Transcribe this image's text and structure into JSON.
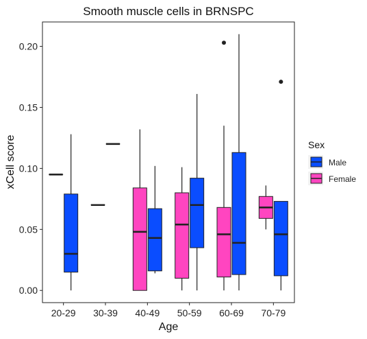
{
  "chart_data": {
    "type": "boxplot",
    "title": "Smooth muscle cells in BRNSPC",
    "xlabel": "Age",
    "ylabel": "xCell score",
    "ylim": [
      -0.01,
      0.22
    ],
    "yticks": [
      0.0,
      0.05,
      0.1,
      0.15,
      0.2
    ],
    "ytick_labels": [
      "0.00",
      "0.05",
      "0.10",
      "0.15",
      "0.20"
    ],
    "categories": [
      "20-29",
      "30-39",
      "40-49",
      "50-59",
      "60-69",
      "70-79"
    ],
    "legend": {
      "title": "Sex",
      "position": "right",
      "entries": [
        {
          "name": "Male",
          "color": "#0a4dff"
        },
        {
          "name": "Female",
          "color": "#ff45c0"
        }
      ]
    },
    "series": [
      {
        "name": "Female",
        "color": "#ff45c0",
        "boxes": [
          {
            "category": "20-29",
            "min": 0.095,
            "q1": 0.095,
            "median": 0.095,
            "q3": 0.095,
            "max": 0.095,
            "outliers": []
          },
          {
            "category": "30-39",
            "min": 0.07,
            "q1": 0.07,
            "median": 0.07,
            "q3": 0.07,
            "max": 0.07,
            "outliers": []
          },
          {
            "category": "40-49",
            "min": 0.0,
            "q1": 0.0,
            "median": 0.048,
            "q3": 0.084,
            "max": 0.132,
            "outliers": []
          },
          {
            "category": "50-59",
            "min": 0.0,
            "q1": 0.01,
            "median": 0.054,
            "q3": 0.08,
            "max": 0.101,
            "outliers": []
          },
          {
            "category": "60-69",
            "min": 0.0,
            "q1": 0.011,
            "median": 0.046,
            "q3": 0.068,
            "max": 0.135,
            "outliers": [
              0.203
            ]
          },
          {
            "category": "70-79",
            "min": 0.05,
            "q1": 0.059,
            "median": 0.068,
            "q3": 0.077,
            "max": 0.086,
            "outliers": []
          }
        ]
      },
      {
        "name": "Male",
        "color": "#0a4dff",
        "boxes": [
          {
            "category": "20-29",
            "min": 0.0,
            "q1": 0.015,
            "median": 0.03,
            "q3": 0.079,
            "max": 0.128,
            "outliers": []
          },
          {
            "category": "30-39",
            "min": 0.12,
            "q1": 0.12,
            "median": 0.12,
            "q3": 0.12,
            "max": 0.12,
            "outliers": []
          },
          {
            "category": "40-49",
            "min": 0.014,
            "q1": 0.016,
            "median": 0.043,
            "q3": 0.067,
            "max": 0.102,
            "outliers": []
          },
          {
            "category": "50-59",
            "min": 0.0,
            "q1": 0.035,
            "median": 0.07,
            "q3": 0.092,
            "max": 0.161,
            "outliers": []
          },
          {
            "category": "60-69",
            "min": 0.0,
            "q1": 0.013,
            "median": 0.039,
            "q3": 0.113,
            "max": 0.21,
            "outliers": []
          },
          {
            "category": "70-79",
            "min": 0.0,
            "q1": 0.012,
            "median": 0.046,
            "q3": 0.073,
            "max": 0.073,
            "outliers": [
              0.171
            ]
          }
        ]
      }
    ],
    "grid": false,
    "panel_border": true
  }
}
